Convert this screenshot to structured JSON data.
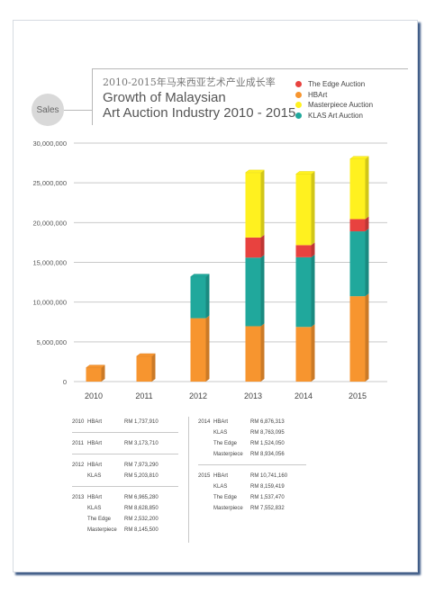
{
  "header": {
    "badge": "Sales",
    "title_cn": "2010-2015年马来西亚艺术产业成长率",
    "title_en_line1": "Growth of Malaysian",
    "title_en_line2": "Art Auction Industry 2010 - 2015"
  },
  "legend": [
    {
      "label": "The Edge Auction",
      "color": "#e8423f"
    },
    {
      "label": "HBArt",
      "color": "#f7952f"
    },
    {
      "label": "Masterpiece Auction",
      "color": "#fff11f"
    },
    {
      "label": "KLAS Art Auction",
      "color": "#20a89c"
    }
  ],
  "chart_data": {
    "type": "bar",
    "stacked": true,
    "categories": [
      "2010",
      "2011",
      "2012",
      "2013",
      "2014",
      "2015"
    ],
    "series": [
      {
        "name": "HBArt",
        "color": "#f7952f",
        "values": [
          1737910,
          3173710,
          7973290,
          6965280,
          6876313,
          10741160
        ]
      },
      {
        "name": "KLAS Art Auction",
        "color": "#20a89c",
        "values": [
          0,
          0,
          5203810,
          8628850,
          8763095,
          8159419
        ]
      },
      {
        "name": "The Edge Auction",
        "color": "#e8423f",
        "values": [
          0,
          0,
          0,
          2532200,
          1524050,
          1537470
        ]
      },
      {
        "name": "Masterpiece Auction",
        "color": "#fff11f",
        "values": [
          0,
          0,
          0,
          8145500,
          8934056,
          7552832
        ]
      }
    ],
    "yticks": [
      "0",
      "5,000,000",
      "10,000,000",
      "15,000,000",
      "20,000,000",
      "25,000,000",
      "30,000,000"
    ],
    "ylim": [
      0,
      30000000
    ],
    "grid": true,
    "legend_position": "top-right"
  },
  "table": {
    "left": [
      {
        "year": "2010",
        "rows": [
          {
            "name": "HBArt",
            "amount": "RM  1,737,910"
          }
        ]
      },
      {
        "year": "2011",
        "rows": [
          {
            "name": "HBArt",
            "amount": "RM  3,173,710"
          }
        ]
      },
      {
        "year": "2012",
        "rows": [
          {
            "name": "HBArt",
            "amount": "RM  7,973,290"
          },
          {
            "name": "KLAS",
            "amount": "RM  5,203,810"
          }
        ]
      },
      {
        "year": "2013",
        "rows": [
          {
            "name": "HBArt",
            "amount": "RM  6,965,280"
          },
          {
            "name": "KLAS",
            "amount": "RM  8,628,850"
          },
          {
            "name": "The Edge",
            "amount": "RM  2,532,200"
          },
          {
            "name": "Masterpiece",
            "amount": "RM  8,145,500"
          }
        ]
      }
    ],
    "right": [
      {
        "year": "2014",
        "rows": [
          {
            "name": "HBArt",
            "amount": "RM  6,876,313"
          },
          {
            "name": "KLAS",
            "amount": "RM  8,763,095"
          },
          {
            "name": "The Edge",
            "amount": "RM  1,524,050"
          },
          {
            "name": "Masterpiece",
            "amount": "RM  8,934,056"
          }
        ]
      },
      {
        "year": "2015",
        "rows": [
          {
            "name": "HBArt",
            "amount": "RM 10,741,160"
          },
          {
            "name": "KLAS",
            "amount": "RM  8,159,419"
          },
          {
            "name": "The Edge",
            "amount": "RM  1,537,470"
          },
          {
            "name": "Masterpiece",
            "amount": "RM  7,552,832"
          }
        ]
      }
    ]
  }
}
